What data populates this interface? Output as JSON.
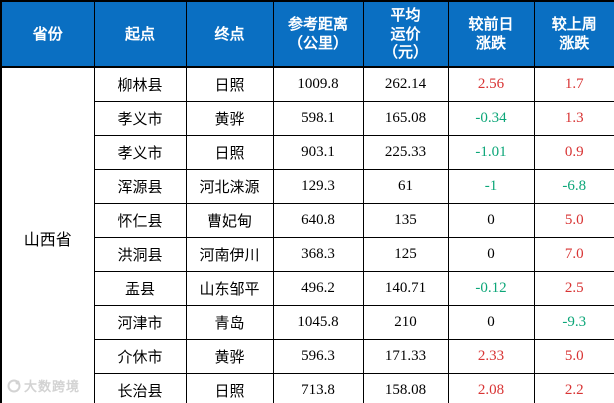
{
  "table": {
    "headers": [
      "省份",
      "起点",
      "终点",
      "参考距离\n（公里）",
      "平均\n运价\n（元）",
      "较前日\n涨跌",
      "较上周\n涨跌"
    ],
    "province": "山西省",
    "rows": [
      {
        "origin": "柳林县",
        "destination": "日照",
        "distance": "1009.8",
        "avg_price": "262.14",
        "dod_change": "2.56",
        "wow_change": "1.7"
      },
      {
        "origin": "孝义市",
        "destination": "黄骅",
        "distance": "598.1",
        "avg_price": "165.08",
        "dod_change": "-0.34",
        "wow_change": "1.3"
      },
      {
        "origin": "孝义市",
        "destination": "日照",
        "distance": "903.1",
        "avg_price": "225.33",
        "dod_change": "-1.01",
        "wow_change": "0.9"
      },
      {
        "origin": "浑源县",
        "destination": "河北涞源",
        "distance": "129.3",
        "avg_price": "61",
        "dod_change": "-1",
        "wow_change": "-6.8"
      },
      {
        "origin": "怀仁县",
        "destination": "曹妃甸",
        "distance": "640.8",
        "avg_price": "135",
        "dod_change": "0",
        "wow_change": "5.0"
      },
      {
        "origin": "洪洞县",
        "destination": "河南伊川",
        "distance": "368.3",
        "avg_price": "125",
        "dod_change": "0",
        "wow_change": "7.0"
      },
      {
        "origin": "盂县",
        "destination": "山东邹平",
        "distance": "496.2",
        "avg_price": "140.71",
        "dod_change": "-0.12",
        "wow_change": "2.5"
      },
      {
        "origin": "河津市",
        "destination": "青岛",
        "distance": "1045.8",
        "avg_price": "210",
        "dod_change": "0",
        "wow_change": "-9.3"
      },
      {
        "origin": "介休市",
        "destination": "黄骅",
        "distance": "596.3",
        "avg_price": "171.33",
        "dod_change": "2.33",
        "wow_change": "5.0"
      },
      {
        "origin": "长治县",
        "destination": "日照",
        "distance": "713.8",
        "avg_price": "158.08",
        "dod_change": "2.08",
        "wow_change": "2.2"
      }
    ]
  },
  "colors": {
    "header_bg": "#0a6fc2",
    "up": "#d83434",
    "down": "#0ca678",
    "flat": "#000000"
  },
  "watermark": {
    "text": "大数跨境"
  }
}
